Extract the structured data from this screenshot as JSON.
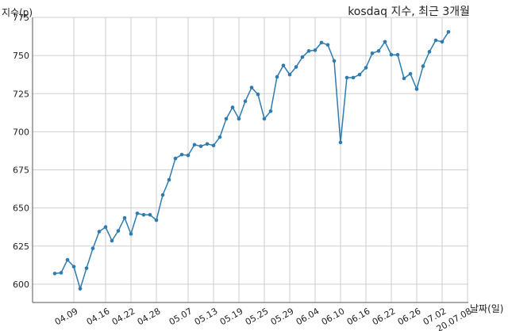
{
  "chart_data": {
    "type": "line",
    "title": "kosdaq 지수, 최근 3개월",
    "xlabel": "날짜(일)",
    "ylabel": "지수(p)",
    "ylim": [
      588,
      775
    ],
    "yticks": [
      600,
      625,
      650,
      675,
      700,
      725,
      750,
      775
    ],
    "grid": true,
    "line_color": "#2e7bb0",
    "xticks": [
      {
        "label": "04.09",
        "index": 3
      },
      {
        "label": "04.16",
        "index": 8
      },
      {
        "label": "04.22",
        "index": 12
      },
      {
        "label": "04.28",
        "index": 16
      },
      {
        "label": "05.07",
        "index": 21
      },
      {
        "label": "05.13",
        "index": 25
      },
      {
        "label": "05.19",
        "index": 29
      },
      {
        "label": "05.25",
        "index": 33
      },
      {
        "label": "05.29",
        "index": 37
      },
      {
        "label": "06.04",
        "index": 41
      },
      {
        "label": "06.10",
        "index": 45
      },
      {
        "label": "06.16",
        "index": 49
      },
      {
        "label": "06.22",
        "index": 53
      },
      {
        "label": "06.26",
        "index": 57
      },
      {
        "label": "07.02",
        "index": 61
      },
      {
        "label": "20.07.08",
        "index": 65
      }
    ],
    "series": [
      {
        "values": [
          607,
          607.5,
          616,
          611.5,
          597,
          610.5,
          623.5,
          634.5,
          637.5,
          628.5,
          635,
          643.5,
          633,
          646.5,
          645.5,
          645.5,
          642,
          658.5,
          668.5,
          682.5,
          685,
          684.5,
          691.5,
          690.5,
          692,
          691,
          696.5,
          708.5,
          716,
          708.5,
          720,
          729,
          724.5,
          708.5,
          713.5,
          736,
          743.5,
          737.5,
          742.5,
          749,
          753,
          753.5,
          758.5,
          757,
          746.5,
          693,
          735.5,
          735.5,
          737.5,
          742,
          751.5,
          753,
          759,
          750.5,
          750.5,
          735,
          738,
          728,
          743,
          752.5,
          760,
          759,
          765.5
        ]
      }
    ]
  }
}
